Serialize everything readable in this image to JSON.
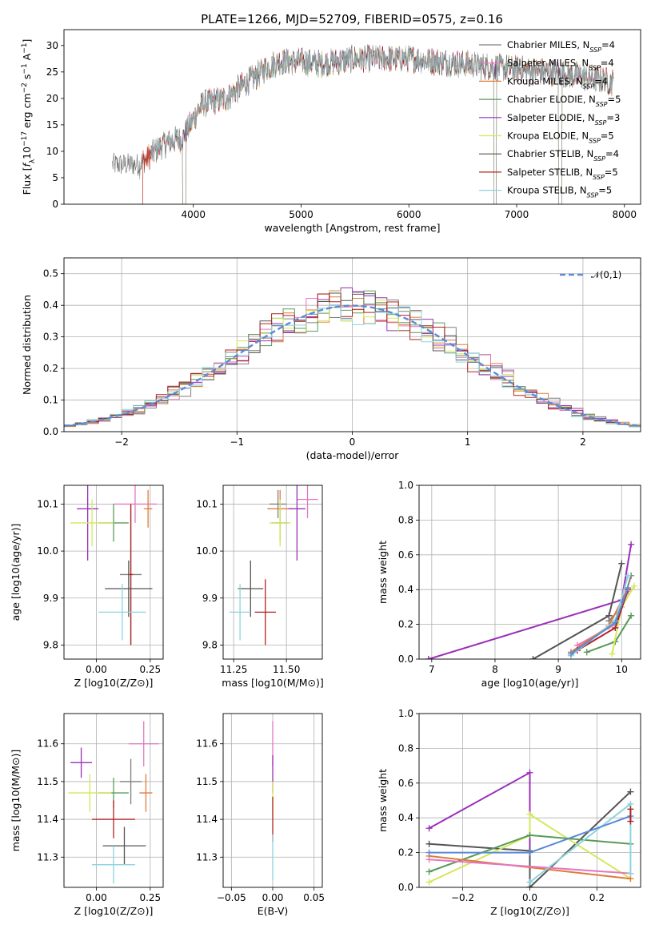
{
  "title": "PLATE=1266, MJD=52709, FIBERID=0575, z=0.16",
  "models": [
    {
      "name": "Chabrier MILES",
      "nssp": "4",
      "color": "#7f7f7f"
    },
    {
      "name": "Salpeter MILES",
      "nssp": "4",
      "color": "#e377c2"
    },
    {
      "name": "Kroupa MILES",
      "nssp": "4",
      "color": "#e07b39"
    },
    {
      "name": "Chabrier ELODIE",
      "nssp": "5",
      "color": "#5a9a5a"
    },
    {
      "name": "Salpeter ELODIE",
      "nssp": "3",
      "color": "#9b30b8"
    },
    {
      "name": "Kroupa ELODIE",
      "nssp": "5",
      "color": "#d4e85a"
    },
    {
      "name": "Chabrier STELIB",
      "nssp": "4",
      "color": "#555555"
    },
    {
      "name": "Salpeter STELIB",
      "nssp": "5",
      "color": "#b22222"
    },
    {
      "name": "Kroupa STELIB",
      "nssp": "5",
      "color": "#8dd3de"
    }
  ],
  "chart_data": [
    {
      "id": "spectrum",
      "type": "line",
      "xlabel": "wavelength [Angstrom, rest frame]",
      "ylabel": "Flux [f_λ 10^-17 erg cm^-2 s^-1 A^-1]",
      "xlim": [
        2800,
        8150
      ],
      "ylim": [
        0,
        33
      ],
      "xticks": [
        4000,
        5000,
        6000,
        7000,
        8000
      ],
      "yticks": [
        0,
        5,
        10,
        15,
        20,
        25,
        30
      ],
      "grid": false,
      "legend": "top-right",
      "continuum": {
        "x": [
          3250,
          3500,
          3700,
          3800,
          3900,
          4000,
          4050,
          4100,
          4300,
          4500,
          4700,
          4800,
          5000,
          5200,
          5500,
          6000,
          6500,
          7000,
          7500,
          7800,
          7900
        ],
        "y": [
          7.5,
          7.5,
          11,
          12,
          12.5,
          16,
          18,
          19,
          20,
          23,
          26,
          27,
          27,
          26.5,
          27.5,
          27.5,
          26.5,
          25.5,
          24.5,
          23.5,
          23
        ]
      }
    },
    {
      "id": "residuals",
      "type": "histogram",
      "xlabel": "(data-model)/error",
      "ylabel": "Normed distribution",
      "xlim": [
        -2.5,
        2.5
      ],
      "ylim": [
        0,
        0.55
      ],
      "xticks": [
        -2,
        -1,
        0,
        1,
        2
      ],
      "yticks": [
        0,
        0.1,
        0.2,
        0.3,
        0.4,
        0.5
      ],
      "grid": true,
      "legend": "top-right",
      "reference_curve": "𝒩(0,1)",
      "reference_color": "#5b8bd6",
      "bin_width": 0.1
    },
    {
      "id": "age_vs_Z",
      "type": "scatter",
      "xlabel": "Z [log10(Z/Z⊙)]",
      "ylabel": "age  [log10(age/yr)]",
      "xlim": [
        -0.15,
        0.31
      ],
      "ylim": [
        9.77,
        10.14
      ],
      "xticks": [
        0,
        0.25
      ],
      "yticks": [
        9.8,
        9.9,
        10.0,
        10.1
      ],
      "grid": true,
      "points": [
        {
          "x": 0.16,
          "y": 9.95,
          "xerr": 0.05,
          "yerr": 0.15,
          "model": 0
        },
        {
          "x": 0.18,
          "y": 10.1,
          "xerr": 0.1,
          "yerr": 0.04,
          "model": 1
        },
        {
          "x": 0.24,
          "y": 10.09,
          "xerr": 0.02,
          "yerr": 0.04,
          "model": 2
        },
        {
          "x": 0.08,
          "y": 10.06,
          "xerr": 0.07,
          "yerr": 0.04,
          "model": 3
        },
        {
          "x": -0.04,
          "y": 10.09,
          "xerr": 0.05,
          "yerr": 0.11,
          "model": 4
        },
        {
          "x": -0.02,
          "y": 10.06,
          "xerr": 0.1,
          "yerr": 0.05,
          "model": 5
        },
        {
          "x": 0.15,
          "y": 9.92,
          "xerr": 0.11,
          "yerr": 0.06,
          "model": 6
        },
        {
          "x": 0.16,
          "y": 9.95,
          "xerr": 0.01,
          "yerr": 0.15,
          "model": 7
        },
        {
          "x": 0.12,
          "y": 9.87,
          "xerr": 0.11,
          "yerr": 0.06,
          "model": 8
        }
      ]
    },
    {
      "id": "age_vs_mass",
      "type": "scatter",
      "xlabel": "mass [log10(M/M⊙)]",
      "ylabel": "",
      "xlim": [
        11.2,
        11.67
      ],
      "ylim": [
        9.77,
        10.14
      ],
      "xticks": [
        11.25,
        11.5
      ],
      "yticks": [
        9.8,
        9.9,
        10.0,
        10.1
      ],
      "grid": true,
      "points": [
        {
          "x": 11.46,
          "y": 10.1,
          "xerr": 0.04,
          "yerr": 0.03,
          "model": 0
        },
        {
          "x": 11.6,
          "y": 10.11,
          "xerr": 0.05,
          "yerr": 0.04,
          "model": 1
        },
        {
          "x": 11.47,
          "y": 10.09,
          "xerr": 0.06,
          "yerr": 0.04,
          "model": 2
        },
        {
          "x": 11.47,
          "y": 10.06,
          "xerr": 0.04,
          "yerr": 0.04,
          "model": 3
        },
        {
          "x": 11.55,
          "y": 10.09,
          "xerr": 0.04,
          "yerr": 0.11,
          "model": 4
        },
        {
          "x": 11.47,
          "y": 10.06,
          "xerr": 0.05,
          "yerr": 0.05,
          "model": 5
        },
        {
          "x": 11.33,
          "y": 9.92,
          "xerr": 0.06,
          "yerr": 0.06,
          "model": 6
        },
        {
          "x": 11.4,
          "y": 9.87,
          "xerr": 0.05,
          "yerr": 0.07,
          "model": 7
        },
        {
          "x": 11.28,
          "y": 9.87,
          "xerr": 0.05,
          "yerr": 0.06,
          "model": 8
        }
      ]
    },
    {
      "id": "weight_vs_age",
      "type": "line",
      "xlabel": "age  [log10(age/yr)]",
      "ylabel": "mass weight",
      "xlim": [
        6.8,
        10.3
      ],
      "ylim": [
        0,
        1
      ],
      "xticks": [
        7,
        8,
        9,
        10
      ],
      "yticks": [
        0,
        0.2,
        0.4,
        0.6,
        0.8,
        1.0
      ],
      "grid": true,
      "series": [
        {
          "model": 0,
          "x": [
            9.8,
            10.0,
            10.15
          ],
          "y": [
            0.22,
            0.3,
            0.48
          ]
        },
        {
          "model": 1,
          "x": [
            9.3,
            9.9,
            10.1
          ],
          "y": [
            0.08,
            0.2,
            0.39
          ]
        },
        {
          "model": 2,
          "x": [
            9.2,
            9.8,
            10.1
          ],
          "y": [
            0.04,
            0.19,
            0.41
          ]
        },
        {
          "model": 3,
          "x": [
            9.45,
            9.9,
            10.15
          ],
          "y": [
            0.04,
            0.1,
            0.25
          ]
        },
        {
          "model": 4,
          "x": [
            6.95,
            10.0,
            10.15
          ],
          "y": [
            0.0,
            0.34,
            0.66
          ]
        },
        {
          "model": 5,
          "x": [
            9.85,
            10.0,
            10.2
          ],
          "y": [
            0.03,
            0.3,
            0.42
          ]
        },
        {
          "model": 6,
          "x": [
            8.6,
            9.8,
            10.0
          ],
          "y": [
            0.0,
            0.25,
            0.55
          ]
        },
        {
          "model": 7,
          "x": [
            9.3,
            9.9,
            10.1
          ],
          "y": [
            0.05,
            0.18,
            0.4
          ]
        },
        {
          "model": 8,
          "x": [
            9.2,
            9.9,
            10.1
          ],
          "y": [
            0.02,
            0.22,
            0.48
          ]
        },
        {
          "model": 0,
          "x": [
            9.2,
            9.9,
            10.1
          ],
          "y": [
            0.03,
            0.21,
            0.41
          ],
          "color": "#5b8bd6"
        }
      ]
    },
    {
      "id": "mass_vs_Z",
      "type": "scatter",
      "xlabel": "Z [log10(Z/Z⊙)]",
      "ylabel": "mass [log10(M/M⊙)]",
      "xlim": [
        -0.15,
        0.31
      ],
      "ylim": [
        11.22,
        11.68
      ],
      "xticks": [
        0,
        0.25
      ],
      "yticks": [
        11.3,
        11.4,
        11.5,
        11.6
      ],
      "grid": true,
      "points": [
        {
          "x": 0.16,
          "y": 11.5,
          "xerr": 0.05,
          "yerr": 0.06,
          "model": 0
        },
        {
          "x": 0.22,
          "y": 11.6,
          "xerr": 0.07,
          "yerr": 0.06,
          "model": 1
        },
        {
          "x": 0.23,
          "y": 11.47,
          "xerr": 0.03,
          "yerr": 0.05,
          "model": 2
        },
        {
          "x": 0.08,
          "y": 11.47,
          "xerr": 0.07,
          "yerr": 0.04,
          "model": 3
        },
        {
          "x": -0.07,
          "y": 11.55,
          "xerr": 0.05,
          "yerr": 0.04,
          "model": 4
        },
        {
          "x": -0.03,
          "y": 11.47,
          "xerr": 0.1,
          "yerr": 0.05,
          "model": 5
        },
        {
          "x": 0.13,
          "y": 11.33,
          "xerr": 0.1,
          "yerr": 0.05,
          "model": 6
        },
        {
          "x": 0.08,
          "y": 11.4,
          "xerr": 0.1,
          "yerr": 0.05,
          "model": 7
        },
        {
          "x": 0.08,
          "y": 11.28,
          "xerr": 0.1,
          "yerr": 0.05,
          "model": 8
        }
      ]
    },
    {
      "id": "mass_vs_ebv",
      "type": "scatter",
      "xlabel": "E(B-V)",
      "ylabel": "",
      "xlim": [
        -0.06,
        0.06
      ],
      "ylim": [
        11.22,
        11.68
      ],
      "xticks": [
        -0.05,
        0,
        0.05
      ],
      "yticks": [
        11.3,
        11.4,
        11.5,
        11.6
      ],
      "grid": true,
      "points": [
        {
          "x": 0,
          "y": 11.6,
          "xerr": 0,
          "yerr": 0.06,
          "model": 1
        },
        {
          "x": 0,
          "y": 11.52,
          "xerr": 0,
          "yerr": 0.05,
          "model": 4
        },
        {
          "x": 0,
          "y": 11.45,
          "xerr": 0,
          "yerr": 0.05,
          "model": 5
        },
        {
          "x": 0,
          "y": 11.4,
          "xerr": 0,
          "yerr": 0.06,
          "model": 7
        },
        {
          "x": 0,
          "y": 11.3,
          "xerr": 0,
          "yerr": 0.06,
          "model": 8
        }
      ]
    },
    {
      "id": "weight_vs_Z",
      "type": "line",
      "xlabel": "Z [log10(Z/Z⊙)]",
      "ylabel": "mass weight",
      "xlim": [
        -0.33,
        0.33
      ],
      "ylim": [
        0,
        1
      ],
      "xticks": [
        -0.2,
        0.0,
        0.2
      ],
      "yticks": [
        0,
        0.2,
        0.4,
        0.6,
        0.8,
        1.0
      ],
      "grid": true,
      "series": [
        {
          "model": 4,
          "x": [
            -0.3,
            0.0,
            0.0
          ],
          "y": [
            0.34,
            0.66,
            0.0
          ]
        },
        {
          "model": 6,
          "x": [
            -0.3,
            0.0,
            0.0,
            0.3
          ],
          "y": [
            0.25,
            0.21,
            0.0,
            0.55
          ]
        },
        {
          "model": 5,
          "x": [
            -0.3,
            0.0,
            0.0,
            0.3
          ],
          "y": [
            0.03,
            0.3,
            0.42,
            0.05
          ]
        },
        {
          "model": 3,
          "x": [
            -0.3,
            0.0,
            0.3
          ],
          "y": [
            0.09,
            0.3,
            0.25
          ]
        },
        {
          "model": 2,
          "x": [
            -0.3,
            0.3
          ],
          "y": [
            0.18,
            0.05
          ]
        },
        {
          "model": 1,
          "x": [
            -0.3,
            0.3
          ],
          "y": [
            0.16,
            0.08
          ]
        },
        {
          "model": 8,
          "x": [
            0.0,
            0.3,
            0.3
          ],
          "y": [
            0.03,
            0.48,
            0.08
          ]
        },
        {
          "model": 0,
          "x": [
            -0.3,
            0.0,
            0.3
          ],
          "y": [
            0.2,
            0.2,
            0.41
          ],
          "color": "#5b8bd6"
        },
        {
          "model": 7,
          "x": [
            0.3,
            0.3
          ],
          "y": [
            0.38,
            0.45
          ]
        }
      ]
    }
  ]
}
